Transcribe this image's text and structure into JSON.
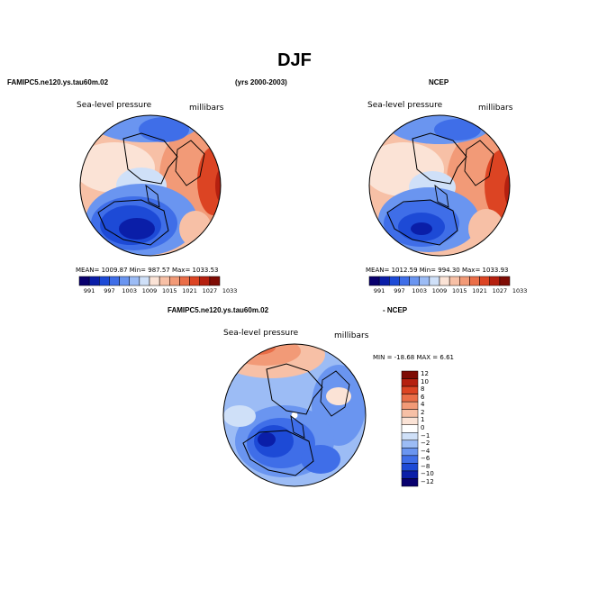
{
  "figure": {
    "title": "DJF",
    "model_label": "FAMIPC5.ne120.ys.tau60m.02",
    "years_label": "(yrs 2000-2003)",
    "obs_label": "NCEP",
    "diff_model_label": "FAMIPC5.ne120.ys.tau60m.02",
    "diff_obs_label": "- NCEP"
  },
  "panels": {
    "model": {
      "variable": "Sea-level pressure",
      "units": "millibars",
      "stats_text": "MEAN=  1009.87    Min=  987.57    Max=  1033.53"
    },
    "obs": {
      "variable": "Sea-level pressure",
      "units": "millibars",
      "stats_text": "MEAN=  1012.59    Min=  994.30    Max=  1033.93"
    },
    "diff": {
      "variable": "Sea-level pressure",
      "units": "millibars",
      "minmax_text": "MIN = -18.68  MAX =    6.61"
    }
  },
  "colorbars": {
    "abs_colors": [
      "#08006e",
      "#0a1ea8",
      "#1d4ad6",
      "#3f6ee8",
      "#6a95f0",
      "#9cbcf5",
      "#cfe0f8",
      "#fbe3d6",
      "#f7c0a6",
      "#f29a77",
      "#ea6e48",
      "#dc4423",
      "#b5200f",
      "#7e0c05"
    ],
    "abs_ticks": [
      "991",
      "997",
      "1003",
      "1009",
      "1015",
      "1021",
      "1027",
      "1033"
    ],
    "diff_colors": [
      "#7e0c05",
      "#b5200f",
      "#dc4423",
      "#ea6e48",
      "#f29a77",
      "#f7c0a6",
      "#fbe3d6",
      "#ffffff",
      "#cfe0f8",
      "#9cbcf5",
      "#6a95f0",
      "#3f6ee8",
      "#1d4ad6",
      "#0a1ea8",
      "#08006e"
    ],
    "diff_ticks": [
      "12",
      "10",
      "8",
      "6",
      "4",
      "2",
      "1",
      "0",
      "−1",
      "−2",
      "−4",
      "−6",
      "−8",
      "−10",
      "−12"
    ]
  }
}
